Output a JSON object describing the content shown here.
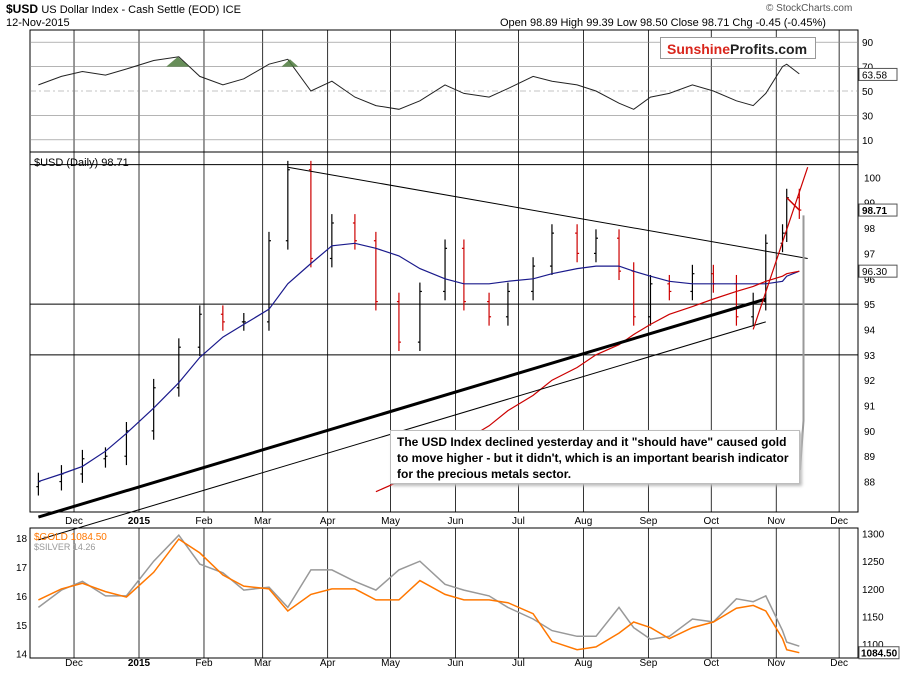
{
  "header": {
    "symbol": "$USD",
    "name": "US Dollar Index - Cash Settle (EOD)",
    "exchange": "ICE",
    "date": "12-Nov-2015",
    "quote": "Open 98.89  High 99.39  Low 98.50  Close 98.71  Chg -0.45 (-0.45%)",
    "copyright": "© StockCharts.com"
  },
  "logo": {
    "part1": "Sunshine",
    "part2": "Profits.com"
  },
  "annotation": "The USD Index declined yesterday and it \"should have\" caused gold to move higher - but it didn't, which is an important bearish indicator for the precious metals sector.",
  "colors": {
    "price_up": "#000000",
    "price_down": "#cc0000",
    "ma50": "#1a1a8c",
    "ma200": "#cc0000",
    "gold": "#ff7700",
    "silver": "#999999",
    "rsi_fill": "#4c7a3c"
  },
  "chart_data": [
    {
      "type": "line",
      "panel": "RSI",
      "y_ticks": [
        10,
        30,
        50,
        70,
        90
      ],
      "last_value_label": "63.58",
      "x": [
        "2014-11-14",
        "2014-11-25",
        "2014-12-05",
        "2014-12-16",
        "2014-12-26",
        "2015-01-08",
        "2015-01-20",
        "2015-01-30",
        "2015-02-10",
        "2015-02-20",
        "2015-03-04",
        "2015-03-13",
        "2015-03-24",
        "2015-04-03",
        "2015-04-14",
        "2015-04-24",
        "2015-05-05",
        "2015-05-15",
        "2015-05-27",
        "2015-06-05",
        "2015-06-17",
        "2015-06-26",
        "2015-07-08",
        "2015-07-17",
        "2015-07-29",
        "2015-08-07",
        "2015-08-18",
        "2015-08-25",
        "2015-09-02",
        "2015-09-11",
        "2015-09-22",
        "2015-10-02",
        "2015-10-13",
        "2015-10-21",
        "2015-10-27",
        "2015-11-04",
        "2015-11-06",
        "2015-11-12"
      ],
      "values": [
        55,
        62,
        66,
        63,
        68,
        75,
        78,
        62,
        55,
        60,
        72,
        76,
        50,
        58,
        45,
        38,
        35,
        42,
        55,
        48,
        45,
        52,
        62,
        58,
        55,
        50,
        40,
        35,
        45,
        48,
        55,
        50,
        42,
        38,
        48,
        70,
        72,
        64
      ]
    },
    {
      "type": "ohlc",
      "panel": "$USD (Daily) 98.71",
      "y_ticks": [
        88,
        89,
        90,
        91,
        92,
        93,
        94,
        95,
        96,
        97,
        98,
        99,
        100
      ],
      "last_close_label": "98.71",
      "ma_label": "96.30",
      "x_ticks": [
        "Dec",
        "2015",
        "Feb",
        "Mar",
        "Apr",
        "May",
        "Jun",
        "Jul",
        "Aug",
        "Sep",
        "Oct",
        "Nov",
        "Dec"
      ],
      "x": [
        "2014-11-14",
        "2014-11-25",
        "2014-12-05",
        "2014-12-16",
        "2014-12-26",
        "2015-01-08",
        "2015-01-20",
        "2015-01-30",
        "2015-02-10",
        "2015-02-20",
        "2015-03-04",
        "2015-03-13",
        "2015-03-24",
        "2015-04-03",
        "2015-04-14",
        "2015-04-24",
        "2015-05-05",
        "2015-05-15",
        "2015-05-27",
        "2015-06-05",
        "2015-06-17",
        "2015-06-26",
        "2015-07-08",
        "2015-07-17",
        "2015-07-29",
        "2015-08-07",
        "2015-08-18",
        "2015-08-25",
        "2015-09-02",
        "2015-09-11",
        "2015-09-22",
        "2015-10-02",
        "2015-10-13",
        "2015-10-21",
        "2015-10-27",
        "2015-11-04",
        "2015-11-06",
        "2015-11-12"
      ],
      "close": [
        88.0,
        88.3,
        88.9,
        89.0,
        90.0,
        91.7,
        93.3,
        94.6,
        94.3,
        94.3,
        97.5,
        100.3,
        96.8,
        98.2,
        97.5,
        95.1,
        93.5,
        95.5,
        97.2,
        95.1,
        94.5,
        95.5,
        96.5,
        97.8,
        97.0,
        97.6,
        96.3,
        94.5,
        95.8,
        95.5,
        96.2,
        95.8,
        94.5,
        95.1,
        97.4,
        97.8,
        99.2,
        98.71
      ],
      "ma50": [
        88.0,
        88.3,
        88.6,
        89.2,
        89.9,
        90.9,
        91.9,
        92.9,
        93.7,
        94.2,
        94.8,
        95.8,
        96.6,
        97.3,
        97.4,
        97.2,
        96.9,
        96.4,
        96.0,
        95.8,
        95.8,
        95.9,
        96.0,
        96.2,
        96.4,
        96.5,
        96.5,
        96.3,
        96.1,
        95.9,
        95.8,
        95.8,
        95.8,
        95.8,
        95.8,
        95.9,
        96.1,
        96.3
      ],
      "ma200": [
        null,
        null,
        null,
        null,
        null,
        null,
        null,
        null,
        null,
        null,
        null,
        null,
        null,
        null,
        null,
        87.6,
        88.0,
        88.5,
        89.0,
        89.6,
        90.2,
        90.8,
        91.4,
        92.0,
        92.5,
        93.0,
        93.4,
        93.8,
        94.2,
        94.6,
        94.9,
        95.2,
        95.5,
        95.7,
        95.9,
        96.1,
        96.2,
        96.3
      ],
      "trendlines": [
        {
          "from": [
            "2015-03-13",
            100.4
          ],
          "to": [
            "2015-11-16",
            96.8
          ]
        },
        {
          "from": [
            "2014-11-14",
            86.6
          ],
          "to": [
            "2015-10-27",
            95.2
          ]
        },
        {
          "from": [
            "2014-11-14",
            85.7
          ],
          "to": [
            "2015-10-27",
            94.3
          ]
        },
        {
          "from": [
            "2015-10-21",
            94.0
          ],
          "to": [
            "2015-11-16",
            100.4
          ]
        }
      ],
      "horizontal_levels": [
        100.5,
        95.0,
        93.0
      ]
    },
    {
      "type": "line",
      "panel": "$GOLD / $SILVER",
      "series": [
        {
          "name": "$GOLD 1084.50",
          "axis": "right",
          "y_ticks": [
            1100,
            1150,
            1200,
            1250,
            1300
          ],
          "values": [
            1180,
            1200,
            1210,
            1195,
            1185,
            1230,
            1290,
            1265,
            1225,
            1205,
            1200,
            1160,
            1190,
            1200,
            1200,
            1180,
            1180,
            1215,
            1190,
            1180,
            1180,
            1175,
            1155,
            1105,
            1090,
            1095,
            1120,
            1140,
            1130,
            1110,
            1130,
            1140,
            1165,
            1170,
            1160,
            1110,
            1090,
            1084.5
          ]
        },
        {
          "name": "$SILVER 14.26",
          "axis": "left",
          "y_ticks": [
            14,
            15,
            16,
            17,
            18
          ],
          "values": [
            15.6,
            16.2,
            16.5,
            16.0,
            16.0,
            17.2,
            18.1,
            17.1,
            16.8,
            16.2,
            16.3,
            15.6,
            16.9,
            16.9,
            16.5,
            16.2,
            16.9,
            17.2,
            16.4,
            16.2,
            16.0,
            15.6,
            15.2,
            14.8,
            14.6,
            14.6,
            15.6,
            14.9,
            14.5,
            14.6,
            15.2,
            15.1,
            15.9,
            15.8,
            16.0,
            14.8,
            14.4,
            14.26
          ]
        }
      ],
      "last_value_label": "1084.50"
    }
  ]
}
